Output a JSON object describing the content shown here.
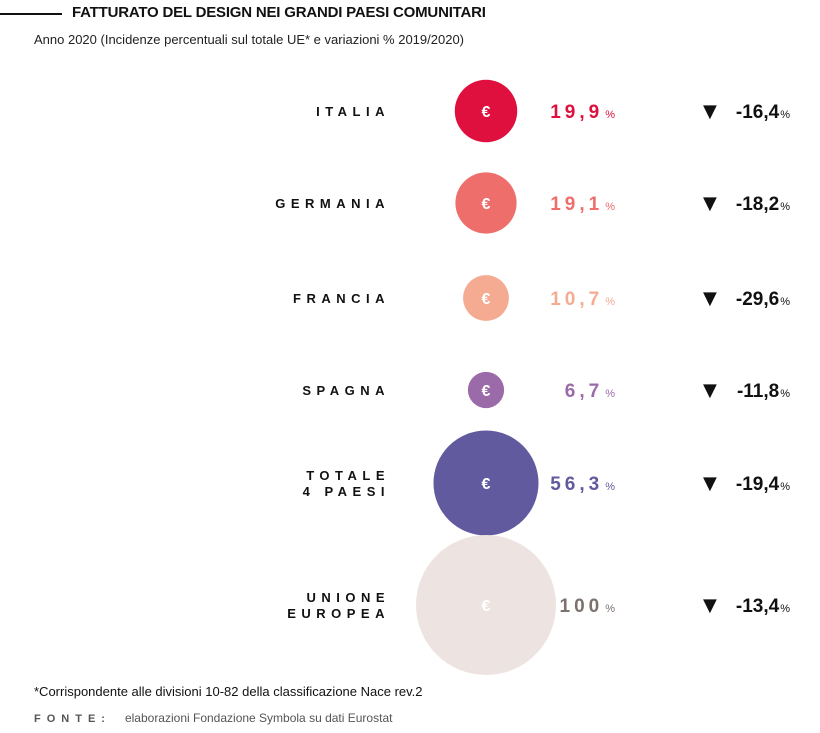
{
  "header": {
    "title": "FATTURATO DEL DESIGN NEI GRANDI PAESI COMUNITARI",
    "subtitle": "Anno 2020 (Incidenze percentuali sul totale UE* e variazioni % 2019/2020)"
  },
  "footer": {
    "note": "*Corrispondente alle divisioni 10-82 della classificazione Nace rev.2",
    "source_label": "FONTE:",
    "source_text": "elaborazioni Fondazione Symbola su dati Eurostat"
  },
  "chart_data": {
    "type": "bubble",
    "title": "FATTURATO DEL DESIGN NEI GRANDI PAESI COMUNITARI",
    "subtitle": "Anno 2020 (Incidenze percentuali sul totale UE* e variazioni % 2019/2020)",
    "bubble_symbol": "€",
    "down_symbol": "▼",
    "unit": "%",
    "categories": [
      [
        "ITALIA"
      ],
      [
        "GERMANIA"
      ],
      [
        "FRANCIA"
      ],
      [
        "SPAGNA"
      ],
      [
        "TOTALE",
        "4 PAESI"
      ],
      [
        "UNIONE",
        "EUROPEA"
      ]
    ],
    "series": [
      {
        "values": [
          19.9,
          19.1,
          10.7,
          6.7,
          56.3,
          100
        ],
        "labels": [
          "19,9",
          "19,1",
          "10,7",
          "6,7",
          "56,3",
          "100"
        ]
      },
      {
        "values": [
          -16.4,
          -18.2,
          -29.6,
          -11.8,
          -19.4,
          -13.4
        ],
        "labels": [
          "-16,4",
          "-18,2",
          "-29,6",
          "-11,8",
          "-19,4",
          "-13,4"
        ]
      }
    ],
    "colors": [
      "#e0103e",
      "#ee6e6c",
      "#f4ab92",
      "#9b6aa8",
      "#625a9e",
      "#ede3e0"
    ],
    "value_colors": [
      "#e0103e",
      "#ee6e6c",
      "#f4ab92",
      "#9b6aa8",
      "#625a9e",
      "#7c716d"
    ]
  }
}
